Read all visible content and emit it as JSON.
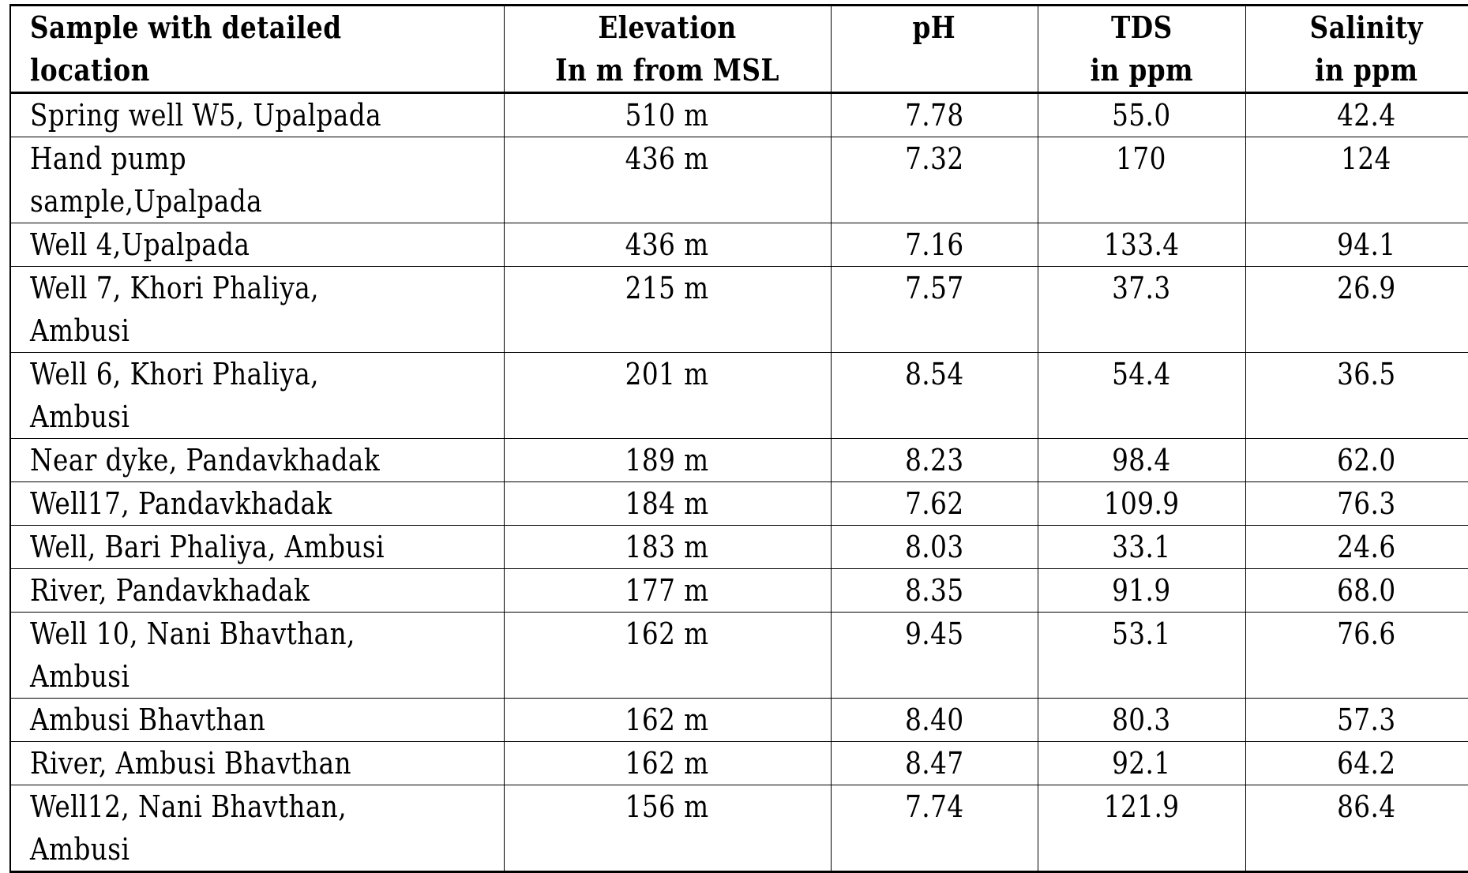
{
  "table": {
    "headers": [
      "Sample with detailed\nlocation",
      "Elevation\nIn m from MSL",
      "pH",
      "TDS\nin ppm",
      "Salinity\nin ppm"
    ],
    "rows": [
      {
        "location": "Spring well W5, Upalpada",
        "elevation": "510 m",
        "ph": "7.78",
        "tds": "55.0",
        "salinity": "42.4"
      },
      {
        "location": "Hand pump\nsample,Upalpada",
        "elevation": "436 m",
        "ph": "7.32",
        "tds": "170",
        "salinity": "124"
      },
      {
        "location": "Well 4,Upalpada",
        "elevation": "436 m",
        "ph": "7.16",
        "tds": "133.4",
        "salinity": "94.1"
      },
      {
        "location": "Well 7, Khori Phaliya,\nAmbusi",
        "elevation": "215 m",
        "ph": "7.57",
        "tds": "37.3",
        "salinity": "26.9"
      },
      {
        "location": "Well 6, Khori Phaliya,\nAmbusi",
        "elevation": "201 m",
        "ph": "8.54",
        "tds": "54.4",
        "salinity": "36.5"
      },
      {
        "location": "Near dyke, Pandavkhadak",
        "elevation": "189 m",
        "ph": "8.23",
        "tds": "98.4",
        "salinity": "62.0"
      },
      {
        "location": "Well17, Pandavkhadak",
        "elevation": "184 m",
        "ph": "7.62",
        "tds": "109.9",
        "salinity": "76.3"
      },
      {
        "location": "Well, Bari Phaliya, Ambusi",
        "elevation": "183 m",
        "ph": "8.03",
        "tds": "33.1",
        "salinity": "24.6"
      },
      {
        "location": "River, Pandavkhadak",
        "elevation": "177 m",
        "ph": "8.35",
        "tds": "91.9",
        "salinity": "68.0"
      },
      {
        "location": "Well 10, Nani Bhavthan,\nAmbusi",
        "elevation": "162 m",
        "ph": "9.45",
        "tds": "53.1",
        "salinity": "76.6"
      },
      {
        "location": "Ambusi Bhavthan",
        "elevation": "162 m",
        "ph": "8.40",
        "tds": "80.3",
        "salinity": "57.3"
      },
      {
        "location": "River, Ambusi Bhavthan",
        "elevation": "162 m",
        "ph": "8.47",
        "tds": "92.1",
        "salinity": "64.2"
      },
      {
        "location": "Well12, Nani Bhavthan,\nAmbusi",
        "elevation": "156 m",
        "ph": "7.74",
        "tds": "121.9",
        "salinity": "86.4"
      }
    ]
  }
}
